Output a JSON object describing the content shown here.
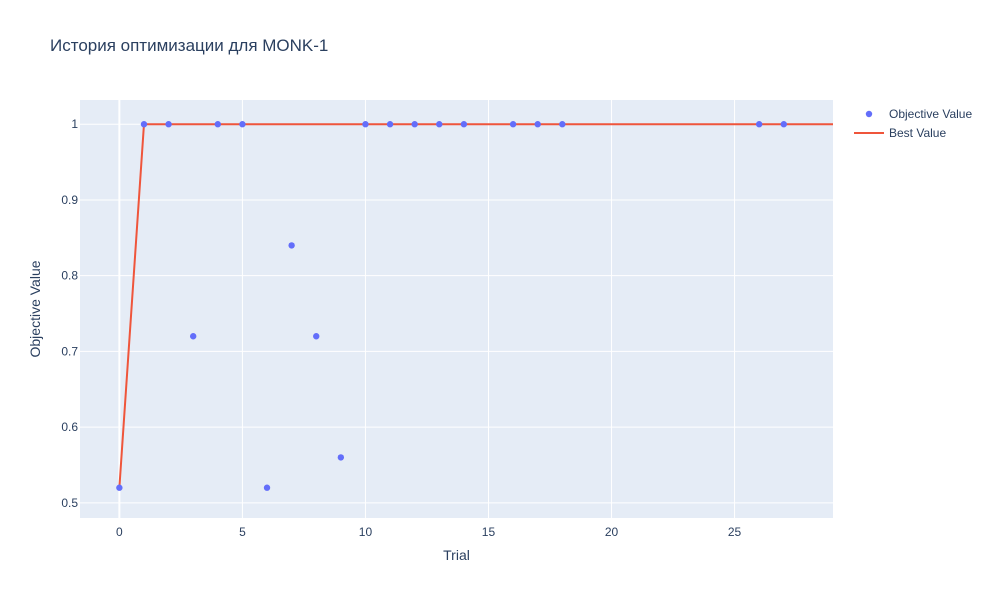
{
  "chart_data": {
    "type": "scatter",
    "title": "История оптимизации для MONK-1",
    "xlabel": "Trial",
    "ylabel": "Objective Value",
    "xlim": [
      -1.6,
      29
    ],
    "ylim": [
      0.48,
      1.032
    ],
    "x_ticks": [
      0,
      5,
      10,
      15,
      20,
      25
    ],
    "y_ticks": [
      0.5,
      0.6,
      0.7,
      0.8,
      0.9,
      1
    ],
    "y_tick_labels": [
      "0.5",
      "0.6",
      "0.7",
      "0.8",
      "0.9",
      "1"
    ],
    "grid": true,
    "legend_position": "top-right",
    "series": [
      {
        "name": "Objective Value",
        "kind": "markers",
        "color": "#636efa",
        "x": [
          0,
          1,
          2,
          3,
          4,
          5,
          6,
          7,
          8,
          9,
          10,
          11,
          12,
          13,
          14,
          16,
          17,
          18,
          26,
          27
        ],
        "y": [
          0.52,
          1,
          1,
          0.72,
          1,
          1,
          0.52,
          0.84,
          0.72,
          0.56,
          1,
          1,
          1,
          1,
          1,
          1,
          1,
          1,
          1,
          1
        ]
      },
      {
        "name": "Best Value",
        "kind": "line",
        "color": "#ef553b",
        "x": [
          0,
          1,
          2,
          3,
          4,
          5,
          6,
          7,
          8,
          9,
          10,
          11,
          12,
          13,
          14,
          16,
          17,
          18,
          26,
          27,
          29
        ],
        "y": [
          0.52,
          1,
          1,
          1,
          1,
          1,
          1,
          1,
          1,
          1,
          1,
          1,
          1,
          1,
          1,
          1,
          1,
          1,
          1,
          1,
          1
        ]
      }
    ]
  }
}
